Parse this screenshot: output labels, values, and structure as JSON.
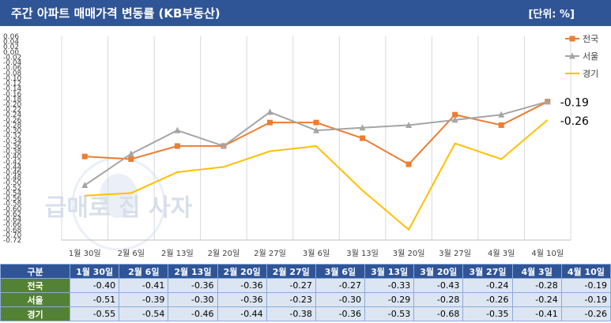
{
  "header": {
    "title": "주간 아파트 매매가격 변동률 (KB부동산)",
    "unit": "[단위: %]"
  },
  "watermark": {
    "text": "급매로 집 사자"
  },
  "table": {
    "corner": "구분"
  },
  "chart_data": {
    "type": "line",
    "categories": [
      "1월 30일",
      "2월 6일",
      "2월 13일",
      "2월 20일",
      "2월 27일",
      "3월 6일",
      "3월 13일",
      "3월 20일",
      "3월 27일",
      "4월 3일",
      "4월 10일"
    ],
    "series": [
      {
        "name": "전국",
        "color": "#ed7d31",
        "marker": "square",
        "values": [
          -0.4,
          -0.41,
          -0.36,
          -0.36,
          -0.27,
          -0.27,
          -0.33,
          -0.43,
          -0.24,
          -0.28,
          -0.19
        ]
      },
      {
        "name": "서울",
        "color": "#a5a5a5",
        "marker": "triangle",
        "values": [
          -0.51,
          -0.39,
          -0.3,
          -0.36,
          -0.23,
          -0.3,
          -0.29,
          -0.28,
          -0.26,
          -0.24,
          -0.19
        ]
      },
      {
        "name": "경기",
        "color": "#ffc000",
        "marker": "line",
        "values": [
          -0.55,
          -0.54,
          -0.46,
          -0.44,
          -0.38,
          -0.36,
          -0.53,
          -0.68,
          -0.35,
          -0.41,
          -0.26
        ]
      }
    ],
    "ylim": [
      -0.72,
      0.06
    ],
    "ytick_step": 0.02,
    "annotations": [
      {
        "text": "-0.19",
        "series": "서울",
        "index": 10
      },
      {
        "text": "-0.26",
        "series": "경기",
        "index": 10
      }
    ],
    "grid": "vertical",
    "legend": "top-right"
  }
}
